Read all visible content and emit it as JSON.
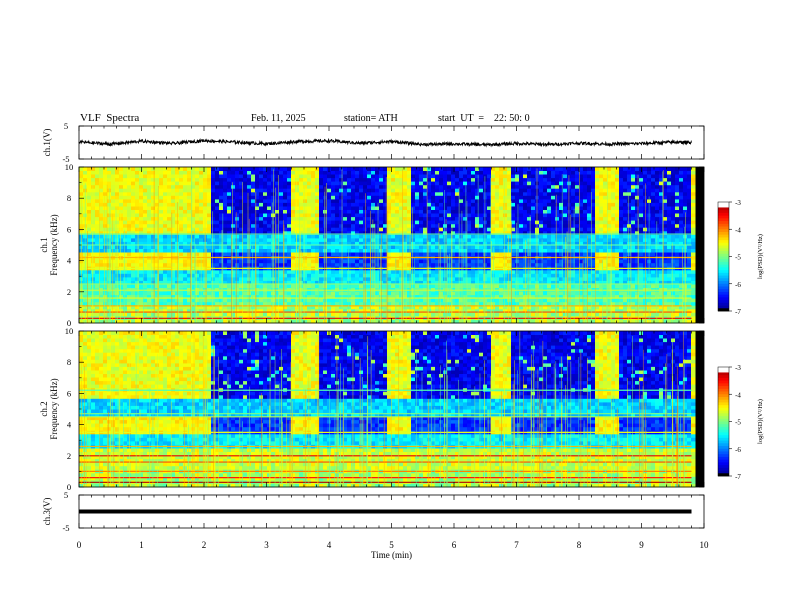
{
  "header": {
    "title": "VLF  Spectra",
    "date": "Feb. 11, 2025",
    "station": "station= ATH",
    "start": "start  UT  =    22: 50: 0"
  },
  "chart_data": [
    {
      "type": "line",
      "panel": "ch1-waveform",
      "ylabel": "ch.1(V)",
      "ylim": [
        -5,
        5
      ],
      "yticks": [
        "5",
        "-5"
      ],
      "x": [
        0,
        0.5,
        1,
        1.5,
        2,
        2.5,
        3,
        3.5,
        4,
        4.5,
        5,
        5.5,
        6,
        6.5,
        7,
        7.5,
        8,
        8.5,
        9,
        9.5,
        9.8
      ],
      "y": [
        0.2,
        -0.5,
        0.4,
        -0.3,
        0.6,
        0.1,
        -0.4,
        0.3,
        0.5,
        -0.2,
        0.3,
        -0.6,
        -0.4,
        -0.7,
        -0.3,
        -0.6,
        -0.2,
        -0.5,
        -0.3,
        0.1,
        0.0
      ]
    },
    {
      "type": "heatmap",
      "panel": "ch1-spectrogram",
      "ylabel": "ch.1\nFrequency (kHz)",
      "ylim": [
        0,
        10
      ],
      "yticks": [
        "0",
        "2",
        "4",
        "6",
        "8",
        "10"
      ],
      "colorbar": {
        "label": "log(PSD)(V²/Hz)",
        "range": [
          -7,
          -3
        ],
        "ticks": [
          "-3",
          "-4",
          "-5",
          "-6",
          "-7"
        ]
      }
    },
    {
      "type": "heatmap",
      "panel": "ch2-spectrogram",
      "ylabel": "ch.2\nFrequency (kHz)",
      "ylim": [
        0,
        10
      ],
      "yticks": [
        "0",
        "2",
        "4",
        "6",
        "8",
        "10"
      ],
      "colorbar": {
        "label": "log(PSD)(V²/Hz)",
        "range": [
          -7,
          -3
        ],
        "ticks": [
          "-3",
          "-4",
          "-5",
          "-6",
          "-7"
        ]
      }
    },
    {
      "type": "line",
      "panel": "ch3-waveform",
      "ylabel": "ch.3(V)",
      "ylim": [
        -5,
        5
      ],
      "yticks": [
        "5",
        "-5"
      ],
      "x": [
        0,
        9.8
      ],
      "y": [
        0,
        0
      ]
    }
  ],
  "xaxis": {
    "label": "Time  (min)",
    "range": [
      0,
      10
    ],
    "ticks": [
      "0",
      "1",
      "2",
      "3",
      "4",
      "5",
      "6",
      "7",
      "8",
      "9",
      "10"
    ]
  },
  "spectrogram_model": {
    "quiet_intervals_min": [
      [
        0,
        2.1
      ],
      [
        3.35,
        3.8
      ],
      [
        4.9,
        5.3
      ],
      [
        6.55,
        6.9
      ],
      [
        8.2,
        8.6
      ],
      [
        9.75,
        10
      ]
    ],
    "data_end_min": 9.8,
    "cutoff_khz": 5.7
  }
}
